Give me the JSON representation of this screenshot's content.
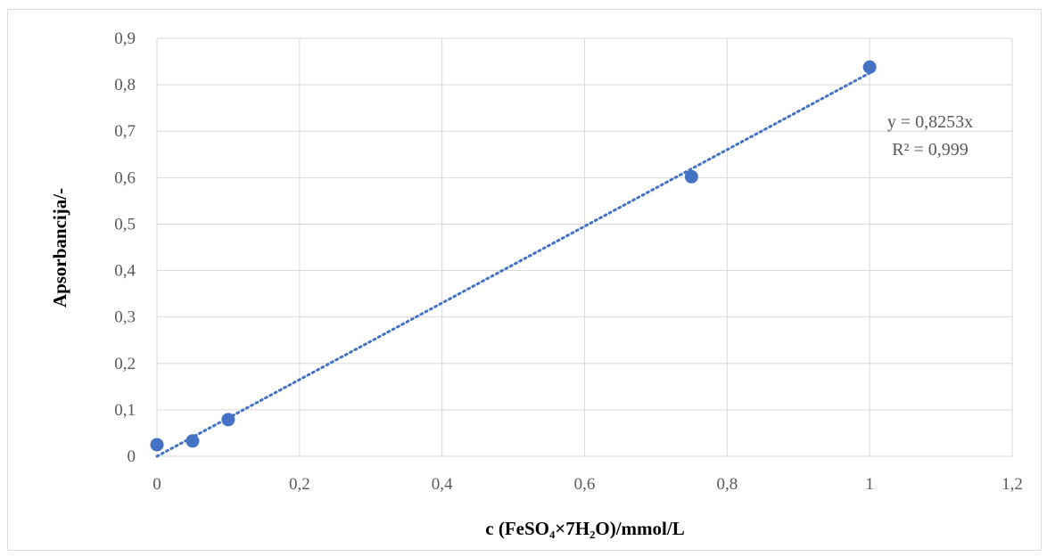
{
  "chart_data": {
    "type": "scatter",
    "xlabel": "c (FeSO₄×7H₂O)/mmol/L",
    "ylabel": "Apsorbancija/-",
    "xlim": [
      0,
      1.2
    ],
    "ylim": [
      0,
      0.9
    ],
    "x_ticks": [
      "0",
      "0,2",
      "0,4",
      "0,6",
      "0,8",
      "1",
      "1,2"
    ],
    "y_ticks": [
      "0",
      "0,1",
      "0,2",
      "0,3",
      "0,4",
      "0,5",
      "0,6",
      "0,7",
      "0,8",
      "0,9"
    ],
    "grid": true,
    "series": [
      {
        "x": [
          0,
          0.05,
          0.1,
          0.75,
          1.0
        ],
        "y": [
          0.025,
          0.033,
          0.079,
          0.602,
          0.838
        ],
        "color": "#4472C4"
      }
    ],
    "trendline": {
      "type": "linear",
      "slope": 0.8253,
      "intercept": 0,
      "style": "dotted",
      "color": "#4472C4",
      "equation": "y = 0,8253x",
      "r_squared": "R² = 0,999"
    }
  }
}
